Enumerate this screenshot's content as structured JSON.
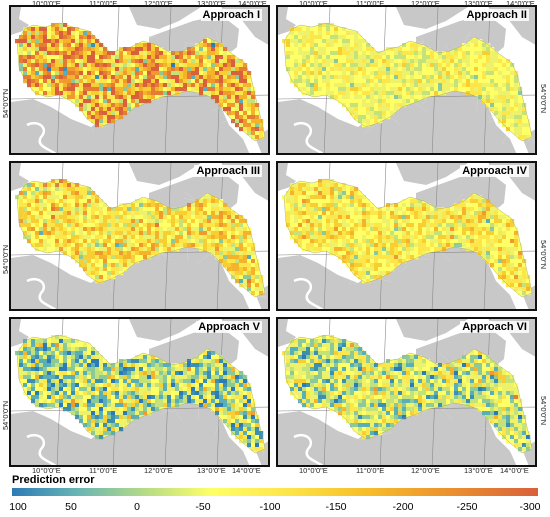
{
  "panels": [
    {
      "title": "Approach I"
    },
    {
      "title": "Approach II"
    },
    {
      "title": "Approach III"
    },
    {
      "title": "Approach IV"
    },
    {
      "title": "Approach V"
    },
    {
      "title": "Approach VI"
    }
  ],
  "longitude_labels": [
    "10°0'0\"E",
    "11°0'0\"E",
    "12°0'0\"E",
    "13°0'0\"E",
    "14°0'0\"E"
  ],
  "latitude_label": "54°0'0\"N",
  "legend": {
    "title": "Prediction error",
    "ticks": [
      "100",
      "50",
      "0",
      "-50",
      "-100",
      "-150",
      "-200",
      "-250",
      "-300"
    ],
    "range": [
      100,
      -300
    ],
    "colors": [
      "#2c7bb6",
      "#67b3b5",
      "#b9dd85",
      "#ffff66",
      "#fde64a",
      "#f7c12a",
      "#ee9a2d",
      "#d9603a"
    ]
  }
}
